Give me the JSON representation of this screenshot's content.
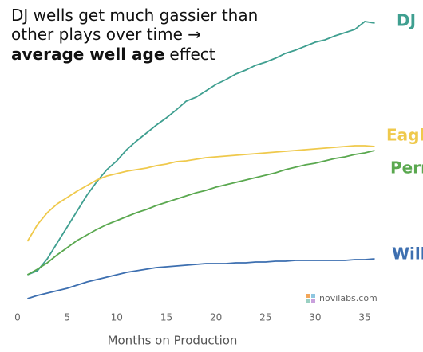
{
  "chart_data": {
    "type": "line",
    "title": [
      "DJ wells get much gassier than",
      "other plays over time →"
    ],
    "title_bold": "average well age",
    "title_end": "effect",
    "x_label": "Months on Production",
    "watermark": "novilabs.com",
    "x": [
      1,
      2,
      3,
      4,
      5,
      6,
      7,
      8,
      9,
      10,
      11,
      12,
      13,
      14,
      15,
      16,
      17,
      18,
      19,
      20,
      21,
      22,
      23,
      24,
      25,
      26,
      27,
      28,
      29,
      30,
      31,
      32,
      33,
      34,
      35,
      36
    ],
    "xlim": [
      0,
      36
    ],
    "xticks": [
      0,
      5,
      10,
      15,
      20,
      25,
      30,
      35
    ],
    "ylim": [
      0,
      370
    ],
    "grid": false,
    "series": [
      {
        "name": "DJ",
        "color": "#3f9f90",
        "values": [
          45,
          50,
          65,
          85,
          105,
          125,
          145,
          162,
          177,
          188,
          202,
          213,
          223,
          233,
          242,
          252,
          263,
          268,
          276,
          284,
          290,
          297,
          302,
          308,
          312,
          317,
          323,
          327,
          332,
          337,
          340,
          345,
          349,
          353,
          363,
          361
        ]
      },
      {
        "name": "Eagle Ford",
        "color": "#efc94c",
        "values": [
          87,
          108,
          123,
          134,
          142,
          150,
          157,
          164,
          169,
          172,
          175,
          177,
          179,
          182,
          184,
          187,
          188,
          190,
          192,
          193,
          194,
          195,
          196,
          197,
          198,
          199,
          200,
          201,
          202,
          203,
          204,
          205,
          206,
          207,
          207,
          206
        ]
      },
      {
        "name": "Permian",
        "color": "#5aa84f",
        "values": [
          45,
          52,
          60,
          70,
          79,
          88,
          95,
          102,
          108,
          113,
          118,
          123,
          127,
          132,
          136,
          140,
          144,
          148,
          151,
          155,
          158,
          161,
          164,
          167,
          170,
          173,
          177,
          180,
          183,
          185,
          188,
          191,
          193,
          196,
          198,
          201
        ]
      },
      {
        "name": "Williston",
        "color": "#3d6fb0",
        "values": [
          15,
          19,
          22,
          25,
          28,
          32,
          36,
          39,
          42,
          45,
          48,
          50,
          52,
          54,
          55,
          56,
          57,
          58,
          59,
          59,
          59,
          60,
          60,
          61,
          61,
          62,
          62,
          63,
          63,
          63,
          63,
          63,
          63,
          64,
          64,
          65
        ]
      }
    ]
  }
}
